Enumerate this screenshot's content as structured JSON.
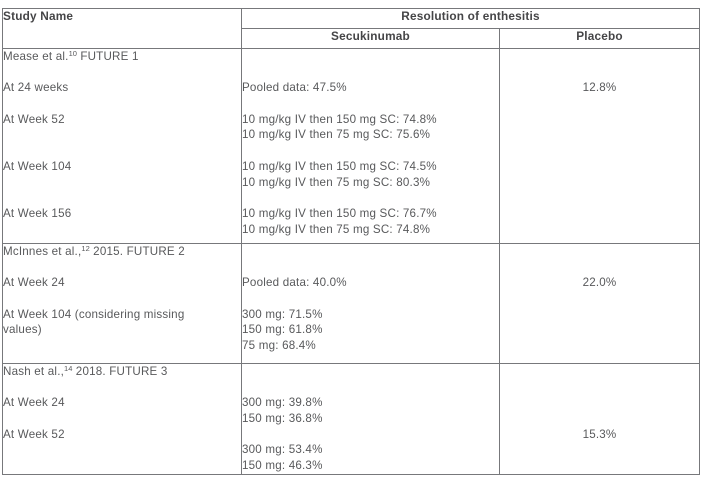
{
  "header": {
    "study_name": "Study Name",
    "resolution_title": "Resolution of enthesitis",
    "col_secukinumab": "Secukinumab",
    "col_placebo": "Placebo"
  },
  "colors": {
    "border": "#77787b",
    "header_text": "#454547",
    "body_text": "#58595b",
    "background": "#ffffff"
  },
  "sections": [
    {
      "title": {
        "pre": "Mease et al.",
        "sup": "10",
        "post": " FUTURE 1"
      },
      "study_lines": [
        "",
        "At 24 weeks",
        "",
        "At Week 52",
        "",
        "",
        "At Week 104",
        "",
        "",
        "At Week 156",
        ""
      ],
      "secukinumab_lines": [
        "",
        "",
        "Pooled data: 47.5%",
        "",
        "10 mg/kg IV then 150 mg SC: 74.8%",
        "10 mg/kg IV then 75 mg SC: 75.6%",
        "",
        "10 mg/kg IV then 150 mg SC: 74.5%",
        "10 mg/kg IV then 75 mg SC: 80.3%",
        "",
        "10 mg/kg IV then 150 mg SC: 76.7%",
        "10 mg/kg IV then 75 mg SC: 74.8%"
      ],
      "placebo_lines": [
        "",
        "",
        "12.8%"
      ]
    },
    {
      "title": {
        "pre": "McInnes et al.,",
        "sup": "12",
        "post": " 2015. FUTURE 2"
      },
      "study_lines": [
        "",
        "At Week 24",
        "",
        "At Week 104 (considering missing",
        "values)",
        ""
      ],
      "secukinumab_lines": [
        "",
        "",
        "Pooled data: 40.0%",
        "",
        "300 mg: 71.5%",
        "150 mg: 61.8%",
        "75 mg: 68.4%"
      ],
      "placebo_lines": [
        "",
        "",
        "22.0%"
      ]
    },
    {
      "title": {
        "pre": "Nash et al.,",
        "sup": "14",
        "post": " 2018. FUTURE 3"
      },
      "study_lines": [
        "",
        "At Week 24",
        "",
        "At Week 52",
        "",
        ""
      ],
      "secukinumab_lines": [
        "",
        "",
        "300 mg: 39.8%",
        "150 mg: 36.8%",
        "",
        "300 mg: 53.4%",
        "150 mg: 46.3%"
      ],
      "placebo_lines": [
        "",
        "",
        "",
        "",
        "15.3%"
      ]
    }
  ]
}
